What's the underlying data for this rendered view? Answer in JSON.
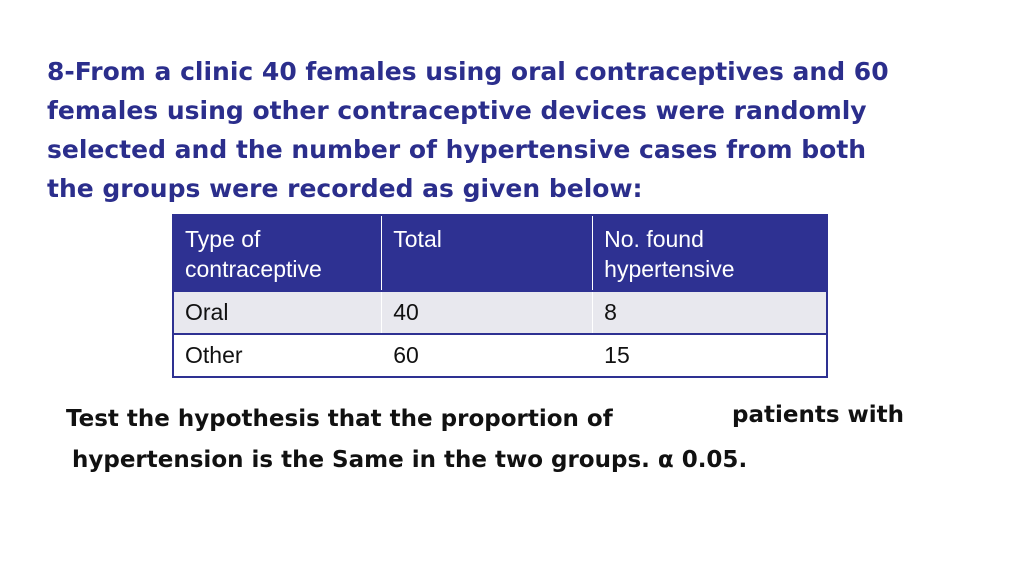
{
  "question": {
    "lines": [
      "8-From a clinic 40 females using oral contraceptives and 60",
      "females using other contraceptive devices were randomly",
      "selected and the number of hypertensive cases from both",
      "the groups were recorded as given below:"
    ]
  },
  "table": {
    "headers": {
      "type": "Type of contraceptive",
      "total": "Total",
      "hypertensive": "No. found hypertensive"
    },
    "rows": [
      {
        "type": "Oral",
        "total": "40",
        "hypertensive": "8"
      },
      {
        "type": "Other",
        "total": "60",
        "hypertensive": "15"
      }
    ]
  },
  "task": {
    "part_a": "Test the hypothesis that the proportion of",
    "part_b": "patients with",
    "part_c": "hypertension is the Same in the two groups. α 0.05."
  },
  "colors": {
    "heading_text": "#2b2e8c",
    "table_header_bg": "#2e3192",
    "table_row_alt_bg": "#e8e8ee"
  }
}
